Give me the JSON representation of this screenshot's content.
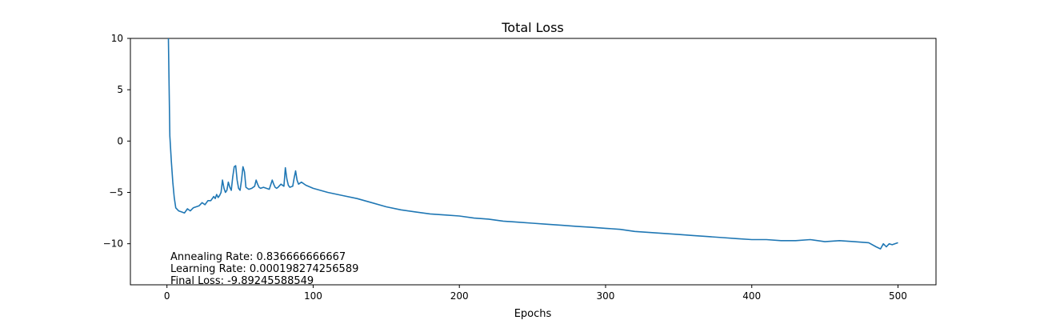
{
  "chart_data": {
    "type": "line",
    "title": "Total Loss",
    "xlabel": "Epochs",
    "ylabel": "",
    "xlim": [
      -25,
      526
    ],
    "ylim": [
      -14,
      10
    ],
    "xticks": [
      0,
      100,
      200,
      300,
      400,
      500
    ],
    "yticks": [
      10,
      5,
      0,
      -5,
      -10
    ],
    "ytick_labels": [
      "10",
      "5",
      "0",
      "−5",
      "−10"
    ],
    "grid": false,
    "legend": "none",
    "series": [
      {
        "color": "#1f77b4",
        "x": [
          1,
          2,
          3,
          4,
          5,
          6,
          8,
          10,
          12,
          14,
          16,
          18,
          20,
          22,
          24,
          26,
          28,
          30,
          32,
          33,
          34,
          35,
          36,
          37,
          38,
          39,
          40,
          41,
          42,
          43,
          44,
          45,
          46,
          47,
          48,
          49,
          50,
          51,
          52,
          53,
          54,
          56,
          58,
          60,
          61,
          62,
          63,
          64,
          66,
          68,
          70,
          72,
          73,
          74,
          75,
          76,
          78,
          80,
          81,
          82,
          83,
          84,
          86,
          87,
          88,
          89,
          90,
          92,
          95,
          100,
          110,
          120,
          130,
          140,
          150,
          160,
          170,
          180,
          190,
          200,
          210,
          220,
          230,
          240,
          250,
          260,
          270,
          280,
          290,
          300,
          310,
          320,
          330,
          340,
          350,
          360,
          370,
          380,
          390,
          400,
          410,
          420,
          430,
          440,
          450,
          460,
          470,
          480,
          485,
          488,
          490,
          492,
          494,
          496,
          500
        ],
        "y": [
          10,
          0.5,
          -2,
          -4,
          -5.5,
          -6.5,
          -6.8,
          -6.9,
          -7.0,
          -6.6,
          -6.8,
          -6.5,
          -6.4,
          -6.3,
          -6.0,
          -6.2,
          -5.8,
          -5.8,
          -5.4,
          -5.6,
          -5.2,
          -5.5,
          -5.3,
          -5.0,
          -3.8,
          -4.6,
          -5.0,
          -4.8,
          -4.0,
          -4.5,
          -4.8,
          -3.5,
          -2.5,
          -2.4,
          -3.8,
          -4.6,
          -4.8,
          -3.8,
          -2.5,
          -3.0,
          -4.5,
          -4.7,
          -4.6,
          -4.4,
          -3.8,
          -4.2,
          -4.5,
          -4.6,
          -4.5,
          -4.6,
          -4.7,
          -3.8,
          -4.2,
          -4.5,
          -4.6,
          -4.5,
          -4.2,
          -4.4,
          -2.6,
          -3.7,
          -4.3,
          -4.5,
          -4.4,
          -3.6,
          -2.9,
          -3.8,
          -4.2,
          -4.0,
          -4.3,
          -4.6,
          -5.0,
          -5.3,
          -5.6,
          -6.0,
          -6.4,
          -6.7,
          -6.9,
          -7.1,
          -7.2,
          -7.3,
          -7.5,
          -7.6,
          -7.8,
          -7.9,
          -8.0,
          -8.1,
          -8.2,
          -8.3,
          -8.4,
          -8.5,
          -8.6,
          -8.8,
          -8.9,
          -9.0,
          -9.1,
          -9.2,
          -9.3,
          -9.4,
          -9.5,
          -9.6,
          -9.6,
          -9.7,
          -9.7,
          -9.6,
          -9.8,
          -9.7,
          -9.8,
          -9.9,
          -10.3,
          -10.5,
          -10.0,
          -10.3,
          -10.0,
          -10.1,
          -9.9
        ]
      }
    ]
  },
  "annotations": [
    "Annealing Rate: 0.836666666667",
    "Learning Rate: 0.000198274256589",
    "Final Loss: -9.89245588549"
  ]
}
